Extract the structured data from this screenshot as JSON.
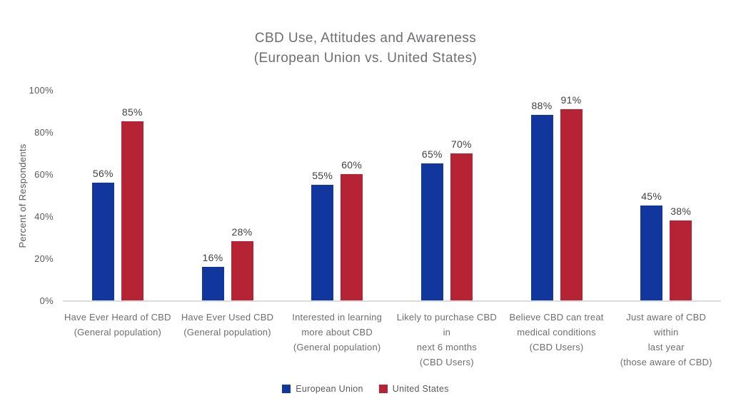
{
  "title": {
    "line1": "CBD Use, Attitudes and Awareness",
    "line2": "(European Union vs. United States)"
  },
  "chart_data": {
    "type": "bar",
    "title": "CBD Use, Attitudes and Awareness (European Union vs. United States)",
    "xlabel": "",
    "ylabel": "Percent of Respondents",
    "ylim": [
      0,
      100
    ],
    "yticks": [
      "0%",
      "20%",
      "40%",
      "60%",
      "80%",
      "100%"
    ],
    "grid": false,
    "legend_position": "bottom",
    "value_label_suffix": "%",
    "categories": [
      [
        "Have Ever Heard of CBD",
        "(General population)"
      ],
      [
        "Have Ever Used CBD",
        "(General population)"
      ],
      [
        "Interested in learning",
        "more about CBD",
        "(General population)"
      ],
      [
        "Likely to purchase CBD in",
        "next 6 months",
        "(CBD Users)"
      ],
      [
        "Believe CBD can treat",
        "medical conditions",
        "(CBD Users)"
      ],
      [
        "Just aware of CBD within",
        "last year",
        "(those aware of CBD)"
      ]
    ],
    "series": [
      {
        "name": "European Union",
        "color": "#11379e",
        "values": [
          56,
          16,
          55,
          65,
          88,
          45
        ]
      },
      {
        "name": "United States",
        "color": "#b52334",
        "values": [
          85,
          28,
          60,
          70,
          91,
          38
        ]
      }
    ]
  },
  "colors": {
    "title_text": "#6d6e71",
    "axis_text": "#58595b",
    "value_text": "#414042",
    "baseline": "#dcdcdc",
    "background": "#ffffff"
  }
}
